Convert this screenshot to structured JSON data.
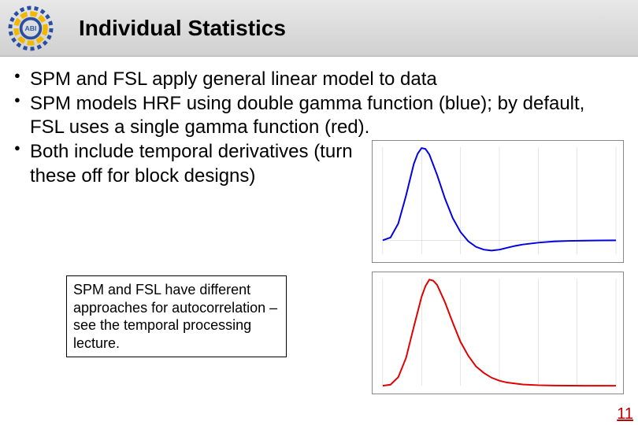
{
  "title": "Individual Statistics",
  "logo": {
    "text": "ABI",
    "outer_color": "#2a4fa0",
    "inner_color": "#f0b800",
    "text_color": "#2a5aa8"
  },
  "bullets": [
    "SPM and FSL apply general linear model to data",
    "SPM models HRF using double gamma function (blue); by default, FSL uses a single gamma function (red).",
    "Both include temporal derivatives (turn these off for block designs)"
  ],
  "note": "SPM and FSL have different approaches for autocorrelation – see the temporal processing lecture.",
  "chart_top": {
    "type": "line",
    "line_color": "#0000e0",
    "line_width": 2,
    "background": "#ffffff",
    "border_color": "#888888",
    "grid_color": "#cccccc",
    "xlim": [
      0,
      30
    ],
    "ylim": [
      -0.15,
      1.0
    ],
    "xticks": [
      0,
      5,
      10,
      15,
      20,
      25,
      30
    ],
    "points_x": [
      0,
      1,
      2,
      3,
      4,
      4.5,
      5,
      5.5,
      6,
      7,
      8,
      9,
      10,
      11,
      12,
      13,
      14,
      15,
      16,
      17,
      18,
      20,
      22,
      24,
      26,
      28,
      30
    ],
    "points_y": [
      0,
      0.03,
      0.18,
      0.48,
      0.82,
      0.93,
      0.99,
      0.98,
      0.92,
      0.7,
      0.45,
      0.24,
      0.09,
      -0.01,
      -0.07,
      -0.1,
      -0.11,
      -0.1,
      -0.08,
      -0.06,
      -0.045,
      -0.025,
      -0.012,
      -0.006,
      -0.003,
      -0.001,
      0
    ]
  },
  "chart_bottom": {
    "type": "line",
    "line_color": "#e00000",
    "line_width": 2,
    "background": "#ffffff",
    "border_color": "#888888",
    "grid_color": "#cccccc",
    "xlim": [
      0,
      30
    ],
    "ylim": [
      0,
      1.0
    ],
    "xticks": [
      0,
      5,
      10,
      15,
      20,
      25,
      30
    ],
    "points_x": [
      0,
      1,
      2,
      3,
      4,
      5,
      5.5,
      6,
      6.5,
      7,
      8,
      9,
      10,
      11,
      12,
      13,
      14,
      15,
      16,
      18,
      20,
      22,
      24,
      26,
      28,
      30
    ],
    "points_y": [
      0,
      0.01,
      0.08,
      0.26,
      0.55,
      0.83,
      0.93,
      0.99,
      0.98,
      0.94,
      0.78,
      0.59,
      0.41,
      0.28,
      0.18,
      0.12,
      0.075,
      0.047,
      0.03,
      0.012,
      0.005,
      0.002,
      0.001,
      0,
      0,
      0
    ]
  },
  "page_number": "11"
}
